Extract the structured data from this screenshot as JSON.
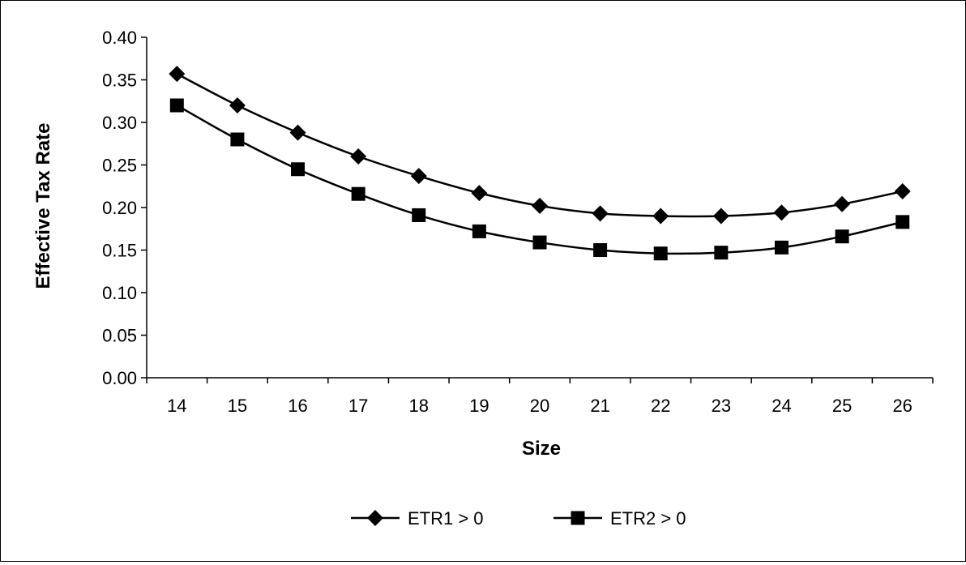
{
  "chart_data": {
    "type": "line",
    "title": "",
    "xlabel": "Size",
    "ylabel": "Effective Tax Rate",
    "categories": [
      "14",
      "15",
      "16",
      "17",
      "18",
      "19",
      "20",
      "21",
      "22",
      "23",
      "24",
      "25",
      "26"
    ],
    "ylim": [
      0,
      0.4
    ],
    "yticks": [
      "0.00",
      "0.05",
      "0.10",
      "0.15",
      "0.20",
      "0.25",
      "0.30",
      "0.35",
      "0.40"
    ],
    "grid": false,
    "legend_position": "bottom",
    "series": [
      {
        "name": "ETR1 > 0",
        "marker": "diamond",
        "color": "#000000",
        "values": [
          0.357,
          0.32,
          0.288,
          0.26,
          0.237,
          0.217,
          0.202,
          0.193,
          0.19,
          0.19,
          0.194,
          0.204,
          0.219
        ]
      },
      {
        "name": "ETR2 > 0",
        "marker": "square",
        "color": "#000000",
        "values": [
          0.32,
          0.28,
          0.245,
          0.216,
          0.191,
          0.172,
          0.159,
          0.15,
          0.146,
          0.147,
          0.153,
          0.166,
          0.183
        ]
      }
    ]
  }
}
